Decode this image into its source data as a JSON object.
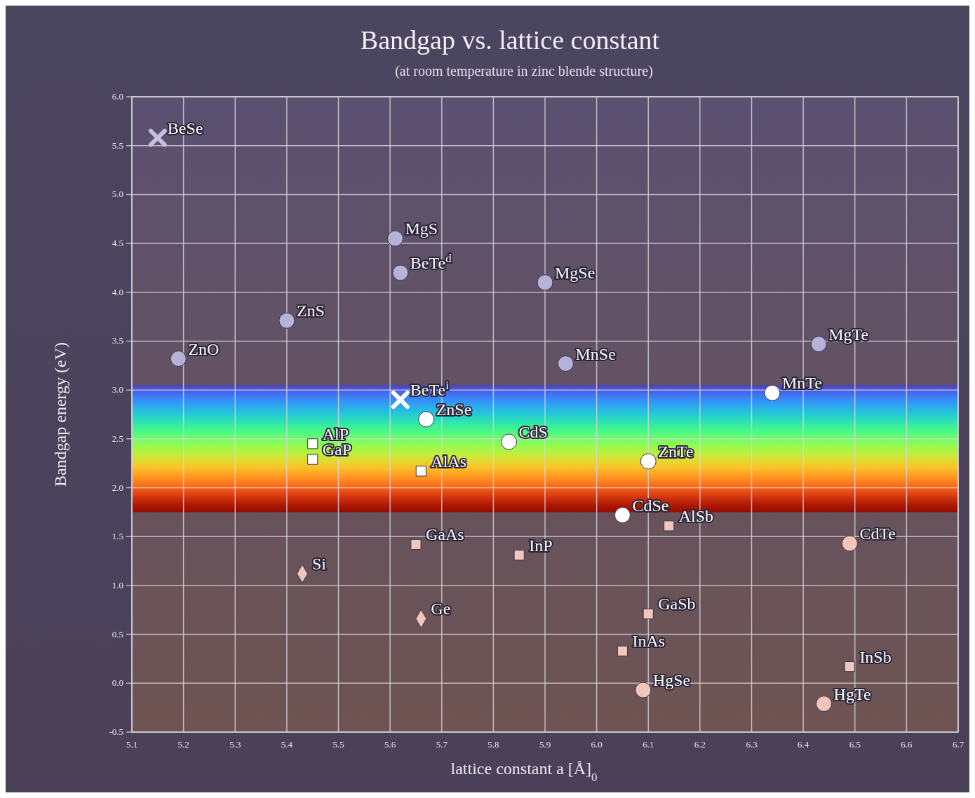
{
  "chart_data": {
    "type": "scatter",
    "title": "Bandgap vs. lattice constant",
    "subtitle": "(at room temperature in zinc blende structure)",
    "xlabel": "lattice constant a  [Å]$_{0}$",
    "ylabel": "Bandgap energy (eV)",
    "xlim": [
      5.1,
      6.7
    ],
    "ylim": [
      -0.5,
      6.0
    ],
    "grid": true,
    "xticks": [
      {
        "value": 5.1,
        "label": "5.1"
      },
      {
        "value": 5.2,
        "label": "5.2"
      },
      {
        "value": 5.3,
        "label": "5.3"
      },
      {
        "value": 5.4,
        "label": "5.4"
      },
      {
        "value": 5.5,
        "label": "5.5"
      },
      {
        "value": 5.6,
        "label": "5.6"
      },
      {
        "value": 5.7,
        "label": "5.7"
      },
      {
        "value": 5.8,
        "label": "5.8"
      },
      {
        "value": 5.9,
        "label": "5.9"
      },
      {
        "value": 6.0,
        "label": "6.0"
      },
      {
        "value": 6.1,
        "label": "6.1"
      },
      {
        "value": 6.2,
        "label": "6.2"
      },
      {
        "value": 6.3,
        "label": "6.3"
      },
      {
        "value": 6.4,
        "label": "6.4"
      },
      {
        "value": 6.5,
        "label": "6.5"
      },
      {
        "value": 6.6,
        "label": "6.6"
      },
      {
        "value": 6.7,
        "label": "6.7"
      }
    ],
    "yticks": [
      {
        "value": -0.5,
        "label": "-0.5"
      },
      {
        "value": 0,
        "label": "0.0"
      },
      {
        "value": 0.5,
        "label": "0.5"
      },
      {
        "value": 1,
        "label": "1.0"
      },
      {
        "value": 1.5,
        "label": "1.5"
      },
      {
        "value": 2,
        "label": "2.0"
      },
      {
        "value": 2.5,
        "label": "2.5"
      },
      {
        "value": 3,
        "label": "3.0"
      },
      {
        "value": 3.5,
        "label": "3.5"
      },
      {
        "value": 4,
        "label": "4.0"
      },
      {
        "value": 4.5,
        "label": "4.5"
      },
      {
        "value": 5,
        "label": "5.0"
      },
      {
        "value": 5.5,
        "label": "5.5"
      },
      {
        "value": 6,
        "label": "6.0"
      }
    ],
    "bands": [
      {
        "axis": "y",
        "from": 1.75,
        "to": 3.05
      }
    ],
    "series": [
      {
        "marker": "circle",
        "color": "#b6b2d8",
        "x": [
          5.19,
          5.4,
          5.61,
          5.62,
          5.9,
          5.94,
          6.43
        ],
        "values": [
          3.32,
          3.71,
          4.55,
          4.2,
          4.1,
          3.27,
          3.47
        ]
      },
      {
        "marker": "cross",
        "colors": [
          "#c4c0e0",
          "#ffffff"
        ],
        "x": [
          5.15,
          5.62
        ],
        "values": [
          5.58,
          2.9
        ]
      },
      {
        "marker": "circle",
        "color": "#ffffff",
        "x": [
          5.67,
          5.83,
          6.1,
          6.05,
          6.34
        ],
        "values": [
          2.7,
          2.47,
          2.27,
          1.72,
          2.97
        ]
      },
      {
        "marker": "square",
        "color": "#ffffff",
        "x": [
          5.45,
          5.45,
          5.66
        ],
        "values": [
          2.45,
          2.29,
          2.17
        ]
      },
      {
        "marker": "square",
        "color": "#f2c6b8",
        "x": [
          5.65,
          5.85,
          6.14,
          6.1,
          6.05,
          6.49
        ],
        "values": [
          1.42,
          1.31,
          1.61,
          0.71,
          0.33,
          0.17
        ]
      },
      {
        "marker": "diamond",
        "color": "#f2c6b8",
        "x": [
          5.43,
          5.66
        ],
        "values": [
          1.12,
          0.66
        ]
      },
      {
        "marker": "circle",
        "color": "#f2c6b8",
        "x": [
          6.49,
          6.09,
          6.44
        ],
        "values": [
          1.43,
          -0.07,
          -0.21
        ]
      }
    ],
    "annotations": [
      {
        "text": "BeSe",
        "x": 5.15,
        "y": 5.58
      },
      {
        "text": "ZnO",
        "x": 5.19,
        "y": 3.32
      },
      {
        "text": "ZnS",
        "x": 5.4,
        "y": 3.71
      },
      {
        "text": "MgS",
        "x": 5.61,
        "y": 4.55
      },
      {
        "text": "BeTe$^{d}$",
        "x": 5.62,
        "y": 4.2
      },
      {
        "text": "MgSe",
        "x": 5.9,
        "y": 4.1
      },
      {
        "text": "MnSe",
        "x": 5.94,
        "y": 3.27
      },
      {
        "text": "MgTe",
        "x": 6.43,
        "y": 3.47
      },
      {
        "text": "BeTe$^{i}$",
        "x": 5.62,
        "y": 2.9
      },
      {
        "text": "ZnSe",
        "x": 5.67,
        "y": 2.7
      },
      {
        "text": "CdS",
        "x": 5.83,
        "y": 2.47
      },
      {
        "text": "ZnTe",
        "x": 6.1,
        "y": 2.27
      },
      {
        "text": "CdSe",
        "x": 6.05,
        "y": 1.72
      },
      {
        "text": "MnTe",
        "x": 6.34,
        "y": 2.97
      },
      {
        "text": "AlP",
        "x": 5.45,
        "y": 2.45
      },
      {
        "text": "GaP",
        "x": 5.45,
        "y": 2.29
      },
      {
        "text": "AlAs",
        "x": 5.66,
        "y": 2.17
      },
      {
        "text": "GaAs",
        "x": 5.65,
        "y": 1.42
      },
      {
        "text": "InP",
        "x": 5.85,
        "y": 1.31
      },
      {
        "text": "AlSb",
        "x": 6.14,
        "y": 1.61
      },
      {
        "text": "GaSb",
        "x": 6.1,
        "y": 0.71
      },
      {
        "text": "InAs",
        "x": 6.05,
        "y": 0.33
      },
      {
        "text": "InSb",
        "x": 6.49,
        "y": 0.17
      },
      {
        "text": "Si",
        "x": 5.43,
        "y": 1.12
      },
      {
        "text": "Ge",
        "x": 5.66,
        "y": 0.66
      },
      {
        "text": "CdTe",
        "x": 6.49,
        "y": 1.43
      },
      {
        "text": "HgSe",
        "x": 6.09,
        "y": -0.07
      },
      {
        "text": "HgTe",
        "x": 6.44,
        "y": -0.21
      }
    ]
  }
}
